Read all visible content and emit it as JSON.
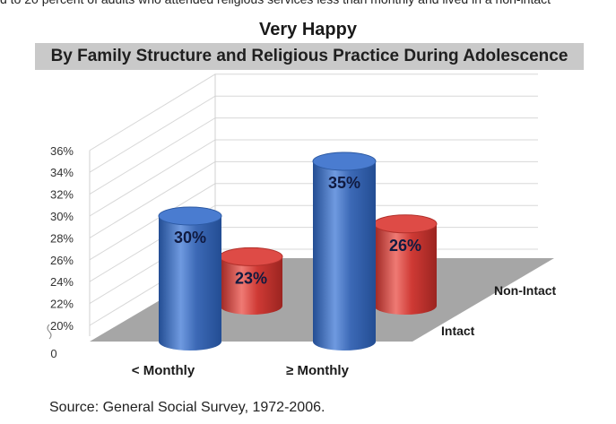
{
  "top_fragment": "d to 20 percent of adults who attended religious services less than monthly and lived in a non-intact",
  "chart_data": {
    "type": "bar",
    "style": "3d-cylinder",
    "title": "Very Happy",
    "subtitle": "By Family Structure and Religious Practice During Adolescence",
    "categories": [
      "< Monthly",
      "≥ Monthly"
    ],
    "depth_labels": [
      "Intact",
      "Non-Intact"
    ],
    "series": [
      {
        "name": "Intact",
        "values": [
          30,
          35
        ],
        "labels": [
          "30%",
          "35%"
        ],
        "color": "#3f6fbf"
      },
      {
        "name": "Non-Intact",
        "values": [
          23,
          26
        ],
        "labels": [
          "23%",
          "26%"
        ],
        "color": "#d63f3a"
      }
    ],
    "y_ticks": [
      "36%",
      "34%",
      "32%",
      "30%",
      "28%",
      "26%",
      "24%",
      "22%",
      "20%"
    ],
    "y_zero_label": "0",
    "ylim": [
      20,
      36
    ],
    "axis_break": true,
    "grid": true,
    "floor_color": "#a6a6a6"
  },
  "source": "Source:  General Social Survey, 1972-2006."
}
